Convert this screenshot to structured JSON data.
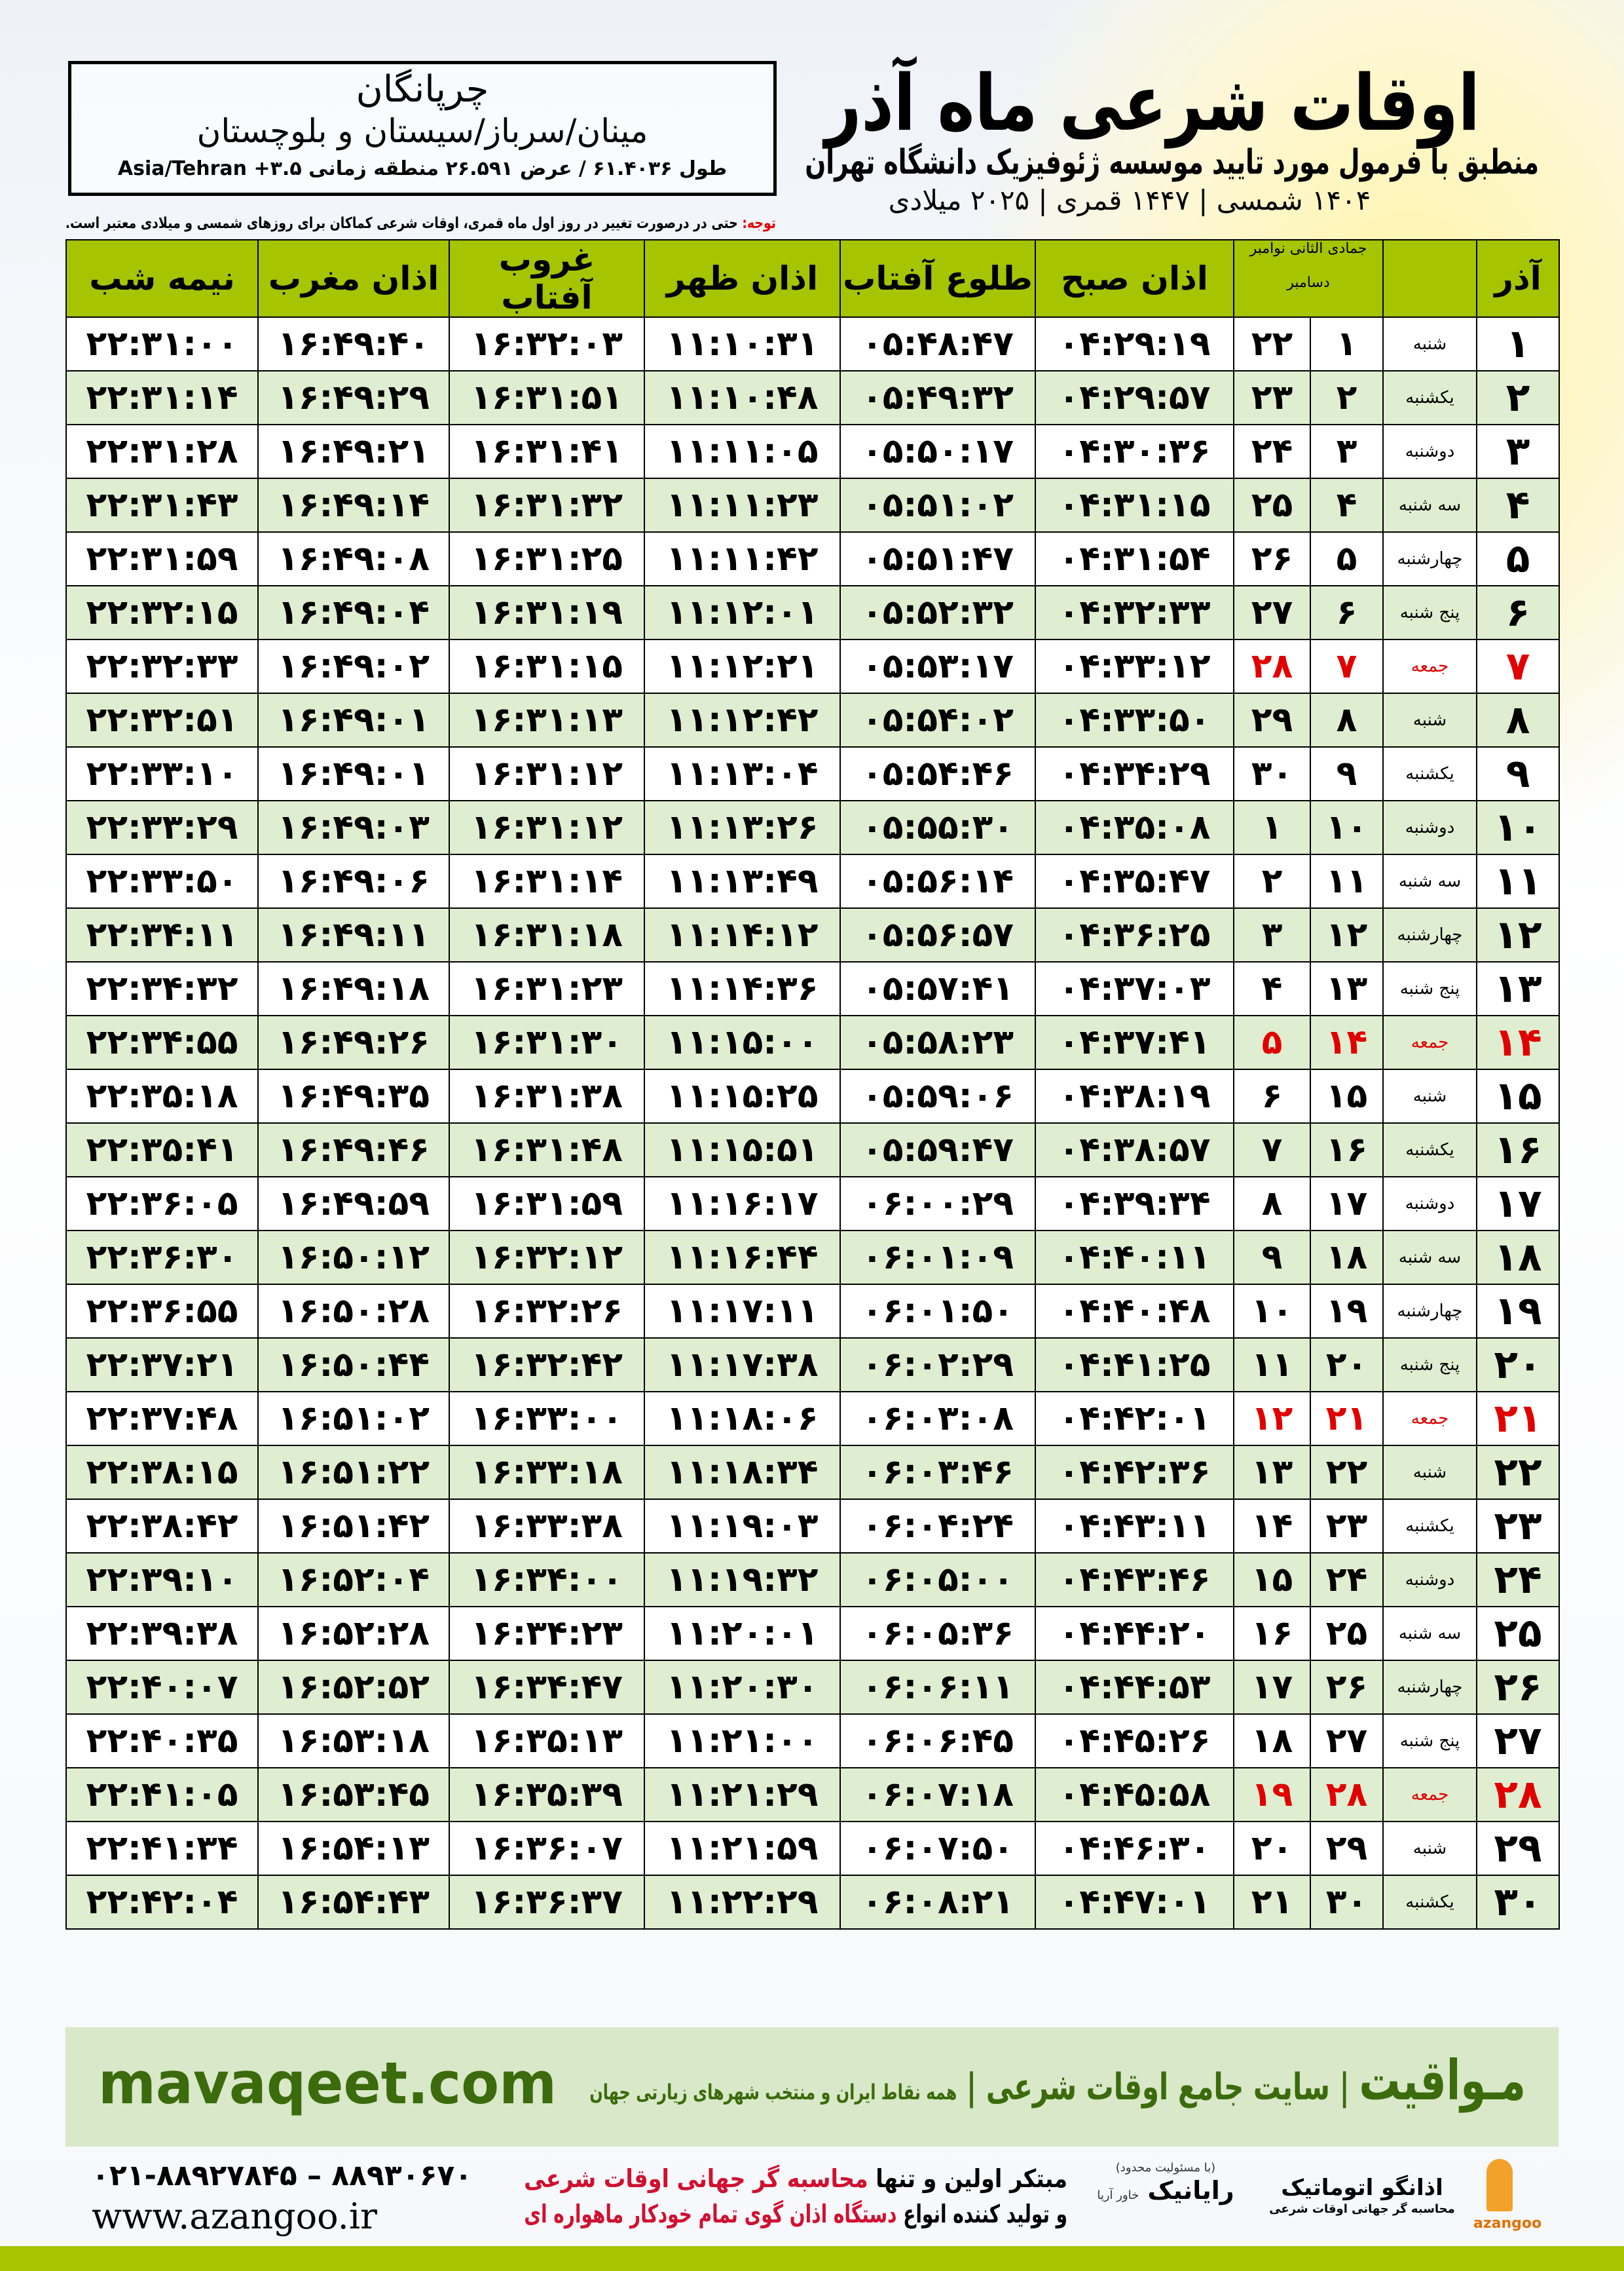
{
  "header": {
    "title": "اوقات شرعی ماه آذر",
    "subtitle": "منطبق با فرمول مورد تایید موسسه ژئوفیزیک دانشگاه تهران",
    "dates": "۱۴۰۴ شمسی | ۱۴۴۷ قمری | ۲۰۲۵ میلادی"
  },
  "location": {
    "name": "چرپانگان",
    "region": "مینان/سرباز/سیستان و بلوچستان",
    "coords": "طول ۶۱.۴۰۳۶ / عرض ۲۶.۵۹۱ منطقه زمانی ۳.۵+ Asia/Tehran"
  },
  "note": {
    "label": "توجه:",
    "text": " حتی در درصورت تغییر در روز اول ماه قمری، اوقات شرعی کماکان برای روزهای شمسی و میلادی معتبر است."
  },
  "columns": {
    "azar": "آذر",
    "jamadi": "جمادی الثانی",
    "november": "نوامبر",
    "december": "دسامبر",
    "fajr": "اذان صبح",
    "sunrise": "طلوع آفتاب",
    "dhuhr": "اذان ظهر",
    "sunset": "غروب آفتاب",
    "maghrib": "اذان مغرب",
    "midnight": "نیمه شب"
  },
  "colors": {
    "header_green": "#a6c400",
    "row_alt": "#dfeed0",
    "friday_red": "#e00000",
    "brand_green": "#3b6b0c"
  },
  "rows": [
    {
      "day": "۱",
      "wd": "شنبه",
      "jm": "۱",
      "dc": "۲۲",
      "fajr": "۰۴:۲۹:۱۹",
      "sunrise": "۰۵:۴۸:۴۷",
      "dhuhr": "۱۱:۱۰:۳۱",
      "sunset": "۱۶:۳۲:۰۳",
      "maghrib": "۱۶:۴۹:۴۰",
      "midnight": "۲۲:۳۱:۰۰"
    },
    {
      "day": "۲",
      "wd": "یکشنبه",
      "jm": "۲",
      "dc": "۲۳",
      "fajr": "۰۴:۲۹:۵۷",
      "sunrise": "۰۵:۴۹:۳۲",
      "dhuhr": "۱۱:۱۰:۴۸",
      "sunset": "۱۶:۳۱:۵۱",
      "maghrib": "۱۶:۴۹:۲۹",
      "midnight": "۲۲:۳۱:۱۴"
    },
    {
      "day": "۳",
      "wd": "دوشنبه",
      "jm": "۳",
      "dc": "۲۴",
      "fajr": "۰۴:۳۰:۳۶",
      "sunrise": "۰۵:۵۰:۱۷",
      "dhuhr": "۱۱:۱۱:۰۵",
      "sunset": "۱۶:۳۱:۴۱",
      "maghrib": "۱۶:۴۹:۲۱",
      "midnight": "۲۲:۳۱:۲۸"
    },
    {
      "day": "۴",
      "wd": "سه شنبه",
      "jm": "۴",
      "dc": "۲۵",
      "fajr": "۰۴:۳۱:۱۵",
      "sunrise": "۰۵:۵۱:۰۲",
      "dhuhr": "۱۱:۱۱:۲۳",
      "sunset": "۱۶:۳۱:۳۲",
      "maghrib": "۱۶:۴۹:۱۴",
      "midnight": "۲۲:۳۱:۴۳"
    },
    {
      "day": "۵",
      "wd": "چهارشنبه",
      "jm": "۵",
      "dc": "۲۶",
      "fajr": "۰۴:۳۱:۵۴",
      "sunrise": "۰۵:۵۱:۴۷",
      "dhuhr": "۱۱:۱۱:۴۲",
      "sunset": "۱۶:۳۱:۲۵",
      "maghrib": "۱۶:۴۹:۰۸",
      "midnight": "۲۲:۳۱:۵۹"
    },
    {
      "day": "۶",
      "wd": "پنج شنبه",
      "jm": "۶",
      "dc": "۲۷",
      "fajr": "۰۴:۳۲:۳۳",
      "sunrise": "۰۵:۵۲:۳۲",
      "dhuhr": "۱۱:۱۲:۰۱",
      "sunset": "۱۶:۳۱:۱۹",
      "maghrib": "۱۶:۴۹:۰۴",
      "midnight": "۲۲:۳۲:۱۵"
    },
    {
      "day": "۷",
      "wd": "جمعه",
      "jm": "۷",
      "dc": "۲۸",
      "fajr": "۰۴:۳۳:۱۲",
      "sunrise": "۰۵:۵۳:۱۷",
      "dhuhr": "۱۱:۱۲:۲۱",
      "sunset": "۱۶:۳۱:۱۵",
      "maghrib": "۱۶:۴۹:۰۲",
      "midnight": "۲۲:۳۲:۳۳",
      "friday": true
    },
    {
      "day": "۸",
      "wd": "شنبه",
      "jm": "۸",
      "dc": "۲۹",
      "fajr": "۰۴:۳۳:۵۰",
      "sunrise": "۰۵:۵۴:۰۲",
      "dhuhr": "۱۱:۱۲:۴۲",
      "sunset": "۱۶:۳۱:۱۳",
      "maghrib": "۱۶:۴۹:۰۱",
      "midnight": "۲۲:۳۲:۵۱"
    },
    {
      "day": "۹",
      "wd": "یکشنبه",
      "jm": "۹",
      "dc": "۳۰",
      "fajr": "۰۴:۳۴:۲۹",
      "sunrise": "۰۵:۵۴:۴۶",
      "dhuhr": "۱۱:۱۳:۰۴",
      "sunset": "۱۶:۳۱:۱۲",
      "maghrib": "۱۶:۴۹:۰۱",
      "midnight": "۲۲:۳۳:۱۰"
    },
    {
      "day": "۱۰",
      "wd": "دوشنبه",
      "jm": "۱۰",
      "dc": "۱",
      "fajr": "۰۴:۳۵:۰۸",
      "sunrise": "۰۵:۵۵:۳۰",
      "dhuhr": "۱۱:۱۳:۲۶",
      "sunset": "۱۶:۳۱:۱۲",
      "maghrib": "۱۶:۴۹:۰۳",
      "midnight": "۲۲:۳۳:۲۹"
    },
    {
      "day": "۱۱",
      "wd": "سه شنبه",
      "jm": "۱۱",
      "dc": "۲",
      "fajr": "۰۴:۳۵:۴۷",
      "sunrise": "۰۵:۵۶:۱۴",
      "dhuhr": "۱۱:۱۳:۴۹",
      "sunset": "۱۶:۳۱:۱۴",
      "maghrib": "۱۶:۴۹:۰۶",
      "midnight": "۲۲:۳۳:۵۰"
    },
    {
      "day": "۱۲",
      "wd": "چهارشنبه",
      "jm": "۱۲",
      "dc": "۳",
      "fajr": "۰۴:۳۶:۲۵",
      "sunrise": "۰۵:۵۶:۵۷",
      "dhuhr": "۱۱:۱۴:۱۲",
      "sunset": "۱۶:۳۱:۱۸",
      "maghrib": "۱۶:۴۹:۱۱",
      "midnight": "۲۲:۳۴:۱۱"
    },
    {
      "day": "۱۳",
      "wd": "پنج شنبه",
      "jm": "۱۳",
      "dc": "۴",
      "fajr": "۰۴:۳۷:۰۳",
      "sunrise": "۰۵:۵۷:۴۱",
      "dhuhr": "۱۱:۱۴:۳۶",
      "sunset": "۱۶:۳۱:۲۳",
      "maghrib": "۱۶:۴۹:۱۸",
      "midnight": "۲۲:۳۴:۳۲"
    },
    {
      "day": "۱۴",
      "wd": "جمعه",
      "jm": "۱۴",
      "dc": "۵",
      "fajr": "۰۴:۳۷:۴۱",
      "sunrise": "۰۵:۵۸:۲۳",
      "dhuhr": "۱۱:۱۵:۰۰",
      "sunset": "۱۶:۳۱:۳۰",
      "maghrib": "۱۶:۴۹:۲۶",
      "midnight": "۲۲:۳۴:۵۵",
      "friday": true
    },
    {
      "day": "۱۵",
      "wd": "شنبه",
      "jm": "۱۵",
      "dc": "۶",
      "fajr": "۰۴:۳۸:۱۹",
      "sunrise": "۰۵:۵۹:۰۶",
      "dhuhr": "۱۱:۱۵:۲۵",
      "sunset": "۱۶:۳۱:۳۸",
      "maghrib": "۱۶:۴۹:۳۵",
      "midnight": "۲۲:۳۵:۱۸"
    },
    {
      "day": "۱۶",
      "wd": "یکشنبه",
      "jm": "۱۶",
      "dc": "۷",
      "fajr": "۰۴:۳۸:۵۷",
      "sunrise": "۰۵:۵۹:۴۷",
      "dhuhr": "۱۱:۱۵:۵۱",
      "sunset": "۱۶:۳۱:۴۸",
      "maghrib": "۱۶:۴۹:۴۶",
      "midnight": "۲۲:۳۵:۴۱"
    },
    {
      "day": "۱۷",
      "wd": "دوشنبه",
      "jm": "۱۷",
      "dc": "۸",
      "fajr": "۰۴:۳۹:۳۴",
      "sunrise": "۰۶:۰۰:۲۹",
      "dhuhr": "۱۱:۱۶:۱۷",
      "sunset": "۱۶:۳۱:۵۹",
      "maghrib": "۱۶:۴۹:۵۹",
      "midnight": "۲۲:۳۶:۰۵"
    },
    {
      "day": "۱۸",
      "wd": "سه شنبه",
      "jm": "۱۸",
      "dc": "۹",
      "fajr": "۰۴:۴۰:۱۱",
      "sunrise": "۰۶:۰۱:۰۹",
      "dhuhr": "۱۱:۱۶:۴۴",
      "sunset": "۱۶:۳۲:۱۲",
      "maghrib": "۱۶:۵۰:۱۲",
      "midnight": "۲۲:۳۶:۳۰"
    },
    {
      "day": "۱۹",
      "wd": "چهارشنبه",
      "jm": "۱۹",
      "dc": "۱۰",
      "fajr": "۰۴:۴۰:۴۸",
      "sunrise": "۰۶:۰۱:۵۰",
      "dhuhr": "۱۱:۱۷:۱۱",
      "sunset": "۱۶:۳۲:۲۶",
      "maghrib": "۱۶:۵۰:۲۸",
      "midnight": "۲۲:۳۶:۵۵"
    },
    {
      "day": "۲۰",
      "wd": "پنج شنبه",
      "jm": "۲۰",
      "dc": "۱۱",
      "fajr": "۰۴:۴۱:۲۵",
      "sunrise": "۰۶:۰۲:۲۹",
      "dhuhr": "۱۱:۱۷:۳۸",
      "sunset": "۱۶:۳۲:۴۲",
      "maghrib": "۱۶:۵۰:۴۴",
      "midnight": "۲۲:۳۷:۲۱"
    },
    {
      "day": "۲۱",
      "wd": "جمعه",
      "jm": "۲۱",
      "dc": "۱۲",
      "fajr": "۰۴:۴۲:۰۱",
      "sunrise": "۰۶:۰۳:۰۸",
      "dhuhr": "۱۱:۱۸:۰۶",
      "sunset": "۱۶:۳۳:۰۰",
      "maghrib": "۱۶:۵۱:۰۲",
      "midnight": "۲۲:۳۷:۴۸",
      "friday": true
    },
    {
      "day": "۲۲",
      "wd": "شنبه",
      "jm": "۲۲",
      "dc": "۱۳",
      "fajr": "۰۴:۴۲:۳۶",
      "sunrise": "۰۶:۰۳:۴۶",
      "dhuhr": "۱۱:۱۸:۳۴",
      "sunset": "۱۶:۳۳:۱۸",
      "maghrib": "۱۶:۵۱:۲۲",
      "midnight": "۲۲:۳۸:۱۵"
    },
    {
      "day": "۲۳",
      "wd": "یکشنبه",
      "jm": "۲۳",
      "dc": "۱۴",
      "fajr": "۰۴:۴۳:۱۱",
      "sunrise": "۰۶:۰۴:۲۴",
      "dhuhr": "۱۱:۱۹:۰۳",
      "sunset": "۱۶:۳۳:۳۸",
      "maghrib": "۱۶:۵۱:۴۲",
      "midnight": "۲۲:۳۸:۴۲"
    },
    {
      "day": "۲۴",
      "wd": "دوشنبه",
      "jm": "۲۴",
      "dc": "۱۵",
      "fajr": "۰۴:۴۳:۴۶",
      "sunrise": "۰۶:۰۵:۰۰",
      "dhuhr": "۱۱:۱۹:۳۲",
      "sunset": "۱۶:۳۴:۰۰",
      "maghrib": "۱۶:۵۲:۰۴",
      "midnight": "۲۲:۳۹:۱۰"
    },
    {
      "day": "۲۵",
      "wd": "سه شنبه",
      "jm": "۲۵",
      "dc": "۱۶",
      "fajr": "۰۴:۴۴:۲۰",
      "sunrise": "۰۶:۰۵:۳۶",
      "dhuhr": "۱۱:۲۰:۰۱",
      "sunset": "۱۶:۳۴:۲۳",
      "maghrib": "۱۶:۵۲:۲۸",
      "midnight": "۲۲:۳۹:۳۸"
    },
    {
      "day": "۲۶",
      "wd": "چهارشنبه",
      "jm": "۲۶",
      "dc": "۱۷",
      "fajr": "۰۴:۴۴:۵۳",
      "sunrise": "۰۶:۰۶:۱۱",
      "dhuhr": "۱۱:۲۰:۳۰",
      "sunset": "۱۶:۳۴:۴۷",
      "maghrib": "۱۶:۵۲:۵۲",
      "midnight": "۲۲:۴۰:۰۷"
    },
    {
      "day": "۲۷",
      "wd": "پنج شنبه",
      "jm": "۲۷",
      "dc": "۱۸",
      "fajr": "۰۴:۴۵:۲۶",
      "sunrise": "۰۶:۰۶:۴۵",
      "dhuhr": "۱۱:۲۱:۰۰",
      "sunset": "۱۶:۳۵:۱۳",
      "maghrib": "۱۶:۵۳:۱۸",
      "midnight": "۲۲:۴۰:۳۵"
    },
    {
      "day": "۲۸",
      "wd": "جمعه",
      "jm": "۲۸",
      "dc": "۱۹",
      "fajr": "۰۴:۴۵:۵۸",
      "sunrise": "۰۶:۰۷:۱۸",
      "dhuhr": "۱۱:۲۱:۲۹",
      "sunset": "۱۶:۳۵:۳۹",
      "maghrib": "۱۶:۵۳:۴۵",
      "midnight": "۲۲:۴۱:۰۵",
      "friday": true
    },
    {
      "day": "۲۹",
      "wd": "شنبه",
      "jm": "۲۹",
      "dc": "۲۰",
      "fajr": "۰۴:۴۶:۳۰",
      "sunrise": "۰۶:۰۷:۵۰",
      "dhuhr": "۱۱:۲۱:۵۹",
      "sunset": "۱۶:۳۶:۰۷",
      "maghrib": "۱۶:۵۴:۱۳",
      "midnight": "۲۲:۴۱:۳۴"
    },
    {
      "day": "۳۰",
      "wd": "یکشنبه",
      "jm": "۳۰",
      "dc": "۲۱",
      "fajr": "۰۴:۴۷:۰۱",
      "sunrise": "۰۶:۰۸:۲۱",
      "dhuhr": "۱۱:۲۲:۲۹",
      "sunset": "۱۶:۳۶:۳۷",
      "maghrib": "۱۶:۵۴:۴۳",
      "midnight": "۲۲:۴۲:۰۴"
    }
  ],
  "footer": {
    "site": "mavaqeet.com",
    "brand": "مـواقیت",
    "brand_sep": "|",
    "tagline": "سایت جامع اوقات شرعی",
    "tagline_sep": "|",
    "tagline_sub": "همه نقاط ایران و منتخب شهرهای زیارتی جهان",
    "phones": "۰۲۱-۸۸۹۲۷۸۴۵ – ۸۸۹۳۰۶۷۰",
    "web": "www.azangoo.ir",
    "promo1a": "مبتکر اولین و تنها ",
    "promo1b": "محاسبه گر جهانی اوقات شرعی",
    "promo2a": "و تولید کننده انواع ",
    "promo2b": "دستگاه اذان گوی تمام خودکار ماهواره ای",
    "logo_rayanik": "رایانیک",
    "logo_rayanik_sub": "خاور آریا",
    "logo_rayanik_note": "(با مسئولیت محدود)",
    "logo_azangoo": "اذانگو اتوماتیک",
    "logo_azangoo_sub": "محاسبه گر جهانی اوقات شرعی",
    "logo_azangoo_en": "azangoo"
  }
}
